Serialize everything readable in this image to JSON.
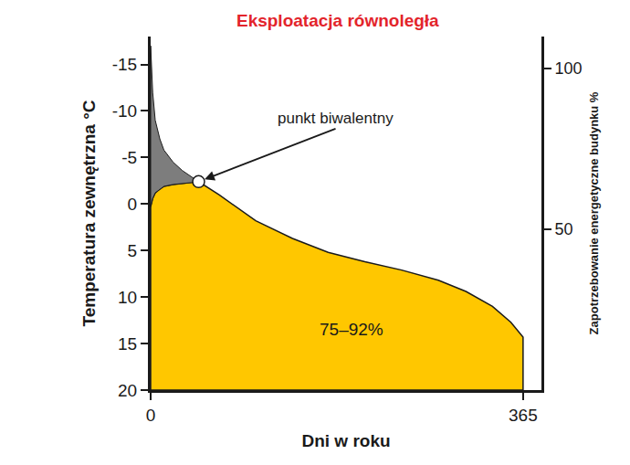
{
  "chart_data": {
    "type": "area",
    "title": "Eksploatacja równoległa",
    "title_color": "#e3242b",
    "x_label": "Dni w roku",
    "y_label": "Temperatura zewnętrzna °C",
    "y2_label": "Zapotrzebowanie energetyczne budynku %",
    "x": [
      0,
      2,
      4.5,
      9,
      13,
      22,
      31,
      40,
      47,
      67,
      103,
      139,
      174,
      210,
      246,
      282,
      309,
      335,
      353,
      365
    ],
    "series": [
      {
        "color": "#ffc700",
        "values": [
          0.3,
          -0.6,
          -1.2,
          -1.6,
          -1.9,
          -2.1,
          -2.2,
          -2.3,
          -2.4,
          -1,
          1.8,
          3.7,
          5.2,
          6.2,
          7.1,
          8.2,
          9.4,
          11,
          12.7,
          14.3
        ]
      },
      {
        "color": "#7d7d7d",
        "values": [
          -17,
          -12,
          -9,
          -7,
          -5.8,
          -4.5,
          -3.6,
          -2.9,
          -2.4,
          null,
          null,
          null,
          null,
          null,
          null,
          null,
          null,
          null,
          null,
          null
        ]
      }
    ],
    "xlim": [
      0,
      383
    ],
    "xticks": [
      0,
      365
    ],
    "ylim": [
      20,
      -18
    ],
    "yticks": [
      -15,
      -10,
      -5,
      0,
      5,
      10,
      15,
      20
    ],
    "y2lim": [
      0,
      110
    ],
    "y2ticks": [
      50,
      100
    ],
    "grid": false,
    "annotations": [
      {
        "text": "punkt biwalentny",
        "x": 47,
        "y": -2.4,
        "marker": "circle"
      },
      {
        "text": "75–92%",
        "x": 197,
        "y": 13.5
      }
    ]
  }
}
